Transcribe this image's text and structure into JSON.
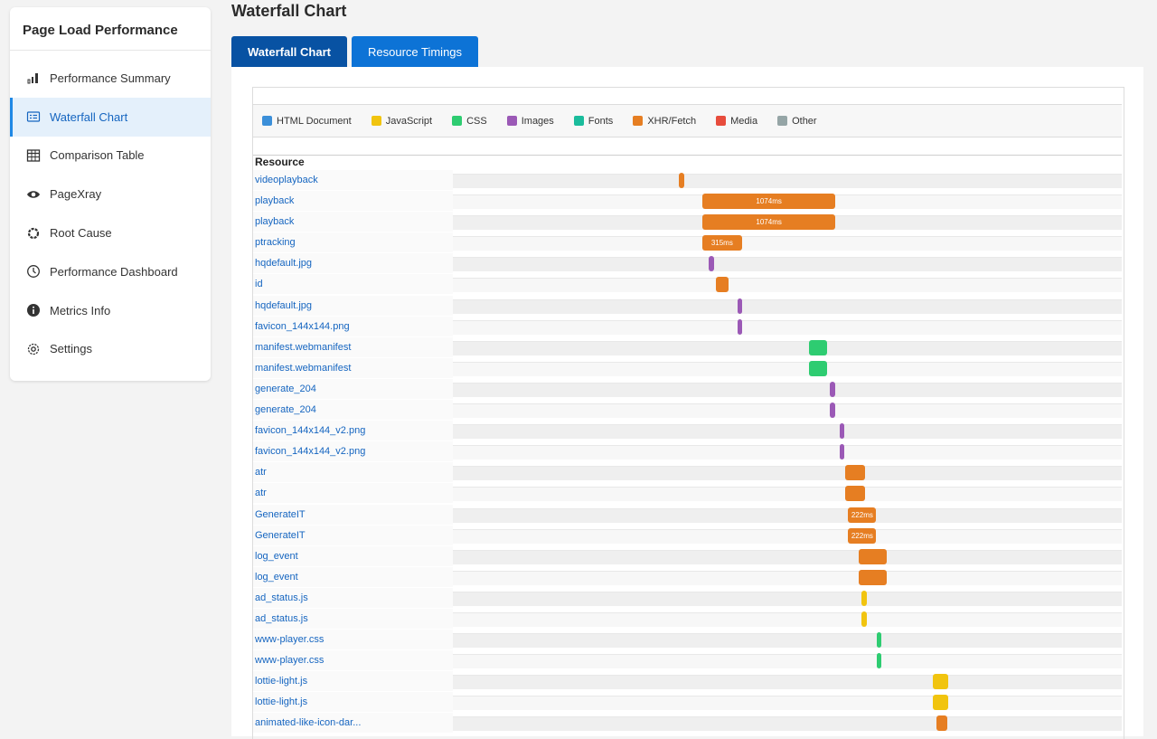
{
  "sidebar": {
    "title": "Page Load Performance",
    "items": [
      {
        "label": "Performance Summary",
        "icon": "bar-chart-icon",
        "active": false
      },
      {
        "label": "Waterfall Chart",
        "icon": "list-chart-icon",
        "active": true
      },
      {
        "label": "Comparison Table",
        "icon": "table-icon",
        "active": false
      },
      {
        "label": "PageXray",
        "icon": "eye-icon",
        "active": false
      },
      {
        "label": "Root Cause",
        "icon": "gear-ring-icon",
        "active": false
      },
      {
        "label": "Performance Dashboard",
        "icon": "clock-icon",
        "active": false
      },
      {
        "label": "Metrics Info",
        "icon": "info-icon",
        "active": false
      },
      {
        "label": "Settings",
        "icon": "settings-icon",
        "active": false
      }
    ]
  },
  "page": {
    "title": "Waterfall Chart",
    "tabs": [
      {
        "label": "Waterfall Chart",
        "active": true
      },
      {
        "label": "Resource Timings",
        "active": false
      }
    ]
  },
  "chart_data": {
    "type": "waterfall",
    "legend": [
      {
        "label": "HTML Document",
        "color": "#3b8fd9"
      },
      {
        "label": "JavaScript",
        "color": "#f1c40f"
      },
      {
        "label": "CSS",
        "color": "#2ecc71"
      },
      {
        "label": "Images",
        "color": "#9b59b6"
      },
      {
        "label": "Fonts",
        "color": "#1abc9c"
      },
      {
        "label": "XHR/Fetch",
        "color": "#e67e22"
      },
      {
        "label": "Media",
        "color": "#e74c3c"
      },
      {
        "label": "Other",
        "color": "#95a5a6"
      }
    ],
    "column_header": "Resource",
    "resources": [
      {
        "name": "videoplayback",
        "type": "XHR/Fetch",
        "start": 0.338,
        "duration": 0.008,
        "label": ""
      },
      {
        "name": "playback",
        "type": "XHR/Fetch",
        "start": 0.373,
        "duration": 0.199,
        "label": "1074ms"
      },
      {
        "name": "playback",
        "type": "XHR/Fetch",
        "start": 0.373,
        "duration": 0.199,
        "label": "1074ms"
      },
      {
        "name": "ptracking",
        "type": "XHR/Fetch",
        "start": 0.373,
        "duration": 0.059,
        "label": "315ms"
      },
      {
        "name": "hqdefault.jpg",
        "type": "Images",
        "start": 0.383,
        "duration": 0.007,
        "label": ""
      },
      {
        "name": "id",
        "type": "XHR/Fetch",
        "start": 0.393,
        "duration": 0.019,
        "label": ""
      },
      {
        "name": "hqdefault.jpg",
        "type": "Images",
        "start": 0.425,
        "duration": 0.007,
        "label": ""
      },
      {
        "name": "favicon_144x144.png",
        "type": "Images",
        "start": 0.425,
        "duration": 0.007,
        "label": ""
      },
      {
        "name": "manifest.webmanifest",
        "type": "CSS",
        "start": 0.532,
        "duration": 0.027,
        "label": ""
      },
      {
        "name": "manifest.webmanifest",
        "type": "CSS",
        "start": 0.532,
        "duration": 0.027,
        "label": ""
      },
      {
        "name": "generate_204",
        "type": "Images",
        "start": 0.564,
        "duration": 0.007,
        "label": ""
      },
      {
        "name": "generate_204",
        "type": "Images",
        "start": 0.564,
        "duration": 0.007,
        "label": ""
      },
      {
        "name": "favicon_144x144_v2.png",
        "type": "Images",
        "start": 0.578,
        "duration": 0.007,
        "label": ""
      },
      {
        "name": "favicon_144x144_v2.png",
        "type": "Images",
        "start": 0.578,
        "duration": 0.007,
        "label": ""
      },
      {
        "name": "atr",
        "type": "XHR/Fetch",
        "start": 0.587,
        "duration": 0.029,
        "label": ""
      },
      {
        "name": "atr",
        "type": "XHR/Fetch",
        "start": 0.587,
        "duration": 0.029,
        "label": ""
      },
      {
        "name": "GenerateIT",
        "type": "XHR/Fetch",
        "start": 0.591,
        "duration": 0.042,
        "label": "222ms"
      },
      {
        "name": "GenerateIT",
        "type": "XHR/Fetch",
        "start": 0.591,
        "duration": 0.042,
        "label": "222ms"
      },
      {
        "name": "log_event",
        "type": "XHR/Fetch",
        "start": 0.607,
        "duration": 0.041,
        "label": ""
      },
      {
        "name": "log_event",
        "type": "XHR/Fetch",
        "start": 0.607,
        "duration": 0.041,
        "label": ""
      },
      {
        "name": "ad_status.js",
        "type": "JavaScript",
        "start": 0.611,
        "duration": 0.008,
        "label": ""
      },
      {
        "name": "ad_status.js",
        "type": "JavaScript",
        "start": 0.611,
        "duration": 0.008,
        "label": ""
      },
      {
        "name": "www-player.css",
        "type": "CSS",
        "start": 0.634,
        "duration": 0.007,
        "label": ""
      },
      {
        "name": "www-player.css",
        "type": "CSS",
        "start": 0.634,
        "duration": 0.007,
        "label": ""
      },
      {
        "name": "lottie-light.js",
        "type": "JavaScript",
        "start": 0.718,
        "duration": 0.022,
        "label": ""
      },
      {
        "name": "lottie-light.js",
        "type": "JavaScript",
        "start": 0.718,
        "duration": 0.022,
        "label": ""
      },
      {
        "name": "animated-like-icon-dar...",
        "type": "XHR/Fetch",
        "start": 0.723,
        "duration": 0.016,
        "label": ""
      }
    ]
  }
}
